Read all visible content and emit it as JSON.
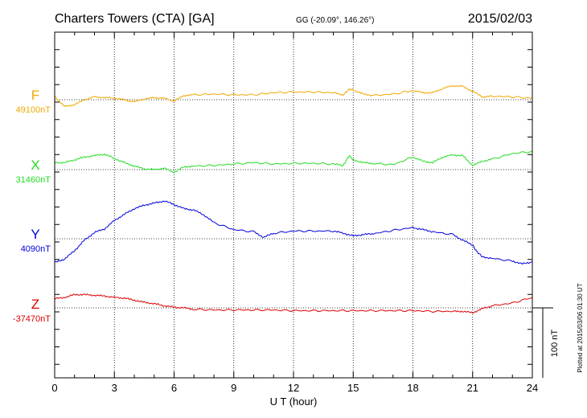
{
  "header": {
    "station": "Charters Towers (CTA)  [GA]",
    "coords": "GG (-20.09°, 146.26°)",
    "date": "2015/02/03"
  },
  "side_note": "Plotted at 2015/03/06 01:30 UT",
  "scale_bar": {
    "label": "100 nT",
    "value_nT": 100
  },
  "chart_data": {
    "type": "line",
    "xlabel": "U T (hour)",
    "xlim": [
      0,
      24
    ],
    "xticks": [
      0,
      3,
      6,
      9,
      12,
      15,
      18,
      21,
      24
    ],
    "xtick_labels": [
      "0",
      "3",
      "6",
      "9",
      "12",
      "15",
      "18",
      "21",
      "24"
    ],
    "grid": true,
    "units": "nT",
    "series": [
      {
        "name": "F",
        "baseline_label": "49100nT",
        "baseline": 49100,
        "color": "#f0a800",
        "x": [
          0,
          0.5,
          1,
          1.5,
          2,
          2.5,
          3,
          3.5,
          4,
          4.5,
          5,
          5.5,
          6,
          6.5,
          7,
          8,
          9,
          10,
          11,
          12,
          13,
          14,
          14.5,
          14.8,
          15,
          15.5,
          16,
          17,
          18,
          18.5,
          19,
          19.5,
          20,
          20.5,
          21,
          21.5,
          22,
          23,
          24
        ],
        "values": [
          49105,
          49090,
          49093,
          49100,
          49104,
          49103,
          49102,
          49100,
          49097,
          49101,
          49103,
          49102,
          49098,
          49106,
          49107,
          49108,
          49107,
          49107,
          49110,
          49111,
          49111,
          49110,
          49107,
          49115,
          49114,
          49108,
          49106,
          49108,
          49113,
          49110,
          49110,
          49116,
          49120,
          49119,
          49112,
          49104,
          49105,
          49104,
          49102
        ]
      },
      {
        "name": "X",
        "baseline_label": "31460nT",
        "baseline": 31460,
        "color": "#22dd22",
        "x": [
          0,
          0.5,
          1,
          1.5,
          2,
          2.5,
          3,
          3.5,
          4,
          4.5,
          5,
          5.5,
          6,
          6.5,
          7,
          8,
          9,
          10,
          11,
          12,
          13,
          14,
          14.5,
          14.8,
          15,
          15.5,
          16,
          17,
          18,
          18.5,
          19,
          19.5,
          20,
          20.5,
          21,
          21.5,
          22,
          23,
          24
        ],
        "values": [
          31470,
          31470,
          31474,
          31478,
          31480,
          31482,
          31476,
          31470,
          31465,
          31461,
          31460,
          31462,
          31456,
          31464,
          31465,
          31466,
          31468,
          31470,
          31468,
          31469,
          31469,
          31468,
          31466,
          31480,
          31474,
          31470,
          31469,
          31467,
          31478,
          31472,
          31470,
          31478,
          31481,
          31480,
          31466,
          31472,
          31475,
          31483,
          31486
        ]
      },
      {
        "name": "Y",
        "baseline_label": "4090nT",
        "baseline": 4090,
        "color": "#0000dd",
        "x": [
          0,
          0.5,
          1,
          1.5,
          2,
          2.5,
          3,
          3.5,
          4,
          4.5,
          5,
          5.5,
          6,
          6.5,
          7,
          7.5,
          8,
          9,
          10,
          10.5,
          11,
          12,
          13,
          14,
          14.5,
          15,
          15.5,
          16,
          17,
          18,
          18.5,
          19,
          20,
          20.5,
          21,
          21.2,
          21.5,
          22,
          23,
          23.5,
          24
        ],
        "values": [
          4056,
          4061,
          4073,
          4088,
          4099,
          4104,
          4116,
          4125,
          4133,
          4138,
          4141,
          4144,
          4139,
          4133,
          4131,
          4124,
          4113,
          4103,
          4100,
          4092,
          4098,
          4101,
          4101,
          4101,
          4098,
          4094,
          4096,
          4097,
          4102,
          4106,
          4103,
          4100,
          4096,
          4088,
          4081,
          4072,
          4064,
          4062,
          4058,
          4054,
          4057
        ]
      },
      {
        "name": "Z",
        "baseline_label": "-37470nT",
        "baseline": -37470,
        "color": "#dd0000",
        "x": [
          0,
          0.5,
          1,
          1.5,
          2,
          2.5,
          3,
          3.5,
          4,
          4.5,
          5,
          5.5,
          6,
          6.5,
          7,
          8,
          9,
          10,
          11,
          12,
          13,
          14,
          15,
          16,
          17,
          18,
          19,
          20,
          20.5,
          21,
          21.5,
          22,
          23,
          24
        ],
        "values": [
          -37457,
          -37455,
          -37451,
          -37451,
          -37452,
          -37453,
          -37455,
          -37456,
          -37459,
          -37462,
          -37464,
          -37467,
          -37469,
          -37470,
          -37472,
          -37473,
          -37473,
          -37473,
          -37473,
          -37474,
          -37474,
          -37474,
          -37474,
          -37474,
          -37474,
          -37474,
          -37475,
          -37475,
          -37475,
          -37477,
          -37471,
          -37467,
          -37463,
          -37455
        ]
      }
    ]
  }
}
